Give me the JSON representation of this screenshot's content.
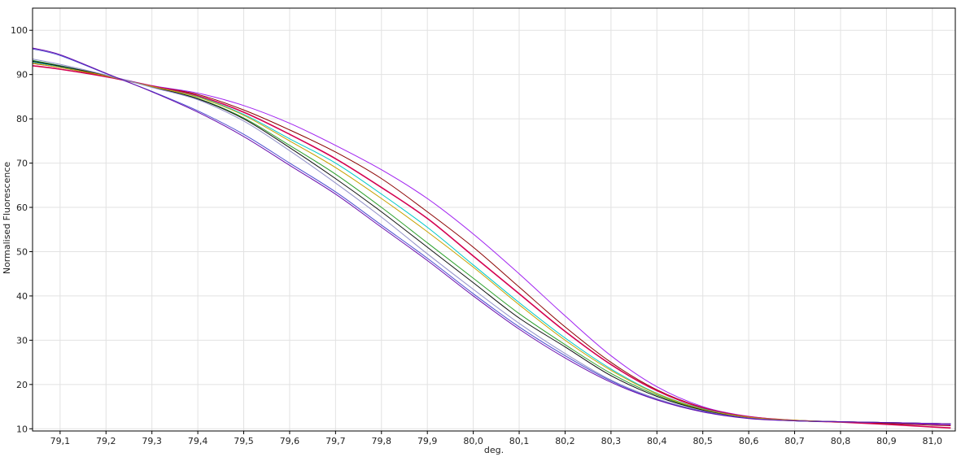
{
  "chart_data": {
    "type": "line",
    "title": "",
    "xlabel": "deg.",
    "ylabel": "Normalised Fluorescence",
    "xlim": [
      79.04,
      81.05
    ],
    "ylim": [
      9.5,
      105
    ],
    "x_ticks": [
      "79,1",
      "79,2",
      "79,3",
      "79,4",
      "79,5",
      "79,6",
      "79,7",
      "79,8",
      "79,9",
      "80,0",
      "80,1",
      "80,2",
      "80,3",
      "80,4",
      "80,5",
      "80,6",
      "80,7",
      "80,8",
      "80,9",
      "81,0"
    ],
    "x_tick_values": [
      79.1,
      79.2,
      79.3,
      79.4,
      79.5,
      79.6,
      79.7,
      79.8,
      79.9,
      80.0,
      80.1,
      80.2,
      80.3,
      80.4,
      80.5,
      80.6,
      80.7,
      80.8,
      80.9,
      81.0
    ],
    "y_ticks": [
      "10",
      "20",
      "30",
      "40",
      "50",
      "60",
      "70",
      "80",
      "90",
      "100"
    ],
    "y_tick_values": [
      10,
      20,
      30,
      40,
      50,
      60,
      70,
      80,
      90,
      100
    ],
    "grid": true,
    "legend": "none",
    "x": [
      79.04,
      79.1,
      79.2,
      79.3,
      79.4,
      79.5,
      79.6,
      79.7,
      79.8,
      79.9,
      80.0,
      80.1,
      80.2,
      80.3,
      80.4,
      80.5,
      80.6,
      80.7,
      80.8,
      80.9,
      81.0,
      81.04
    ],
    "series": [
      {
        "color": "#a020f0",
        "values": [
          93.0,
          92.0,
          89.8,
          87.5,
          85.8,
          83.0,
          79.0,
          74.0,
          68.5,
          62.0,
          54.0,
          45.0,
          35.5,
          26.5,
          19.5,
          15.0,
          12.8,
          11.9,
          11.6,
          11.3,
          11.0,
          10.9
        ]
      },
      {
        "color": "#8b0000",
        "values": [
          92.5,
          91.6,
          89.6,
          87.4,
          85.5,
          82.0,
          77.5,
          72.5,
          66.5,
          59.0,
          51.0,
          42.0,
          33.0,
          25.0,
          18.8,
          14.8,
          12.7,
          11.9,
          11.6,
          11.2,
          10.8,
          10.7
        ]
      },
      {
        "color": "#d40050",
        "values": [
          92.0,
          91.2,
          89.5,
          87.4,
          85.2,
          81.5,
          76.5,
          71.0,
          64.5,
          57.5,
          49.0,
          40.5,
          32.0,
          24.5,
          18.6,
          14.7,
          12.7,
          11.9,
          11.5,
          11.0,
          10.4,
          10.2
        ]
      },
      {
        "color": "#00c8c8",
        "values": [
          92.8,
          91.8,
          89.7,
          87.3,
          85.0,
          81.0,
          75.5,
          70.0,
          63.0,
          55.5,
          47.0,
          38.5,
          30.5,
          23.5,
          18.0,
          14.5,
          12.6,
          11.9,
          11.6,
          11.4,
          11.2,
          11.1
        ]
      },
      {
        "color": "#2ca02c",
        "values": [
          93.2,
          92.0,
          89.8,
          87.2,
          84.6,
          80.2,
          74.0,
          67.5,
          60.0,
          52.0,
          44.0,
          36.0,
          29.0,
          22.5,
          17.6,
          14.3,
          12.5,
          11.8,
          11.6,
          11.4,
          11.2,
          11.1
        ]
      },
      {
        "color": "#101010",
        "values": [
          93.0,
          91.9,
          89.8,
          87.2,
          84.5,
          80.0,
          73.5,
          66.5,
          59.0,
          51.0,
          43.0,
          35.0,
          28.5,
          22.0,
          17.3,
          14.2,
          12.5,
          11.8,
          11.6,
          11.4,
          11.2,
          11.1
        ]
      },
      {
        "color": "#c8a000",
        "values": [
          92.6,
          91.6,
          89.7,
          87.3,
          84.9,
          80.8,
          75.0,
          69.0,
          62.0,
          54.5,
          46.5,
          38.0,
          30.0,
          23.2,
          17.9,
          14.4,
          12.6,
          11.9,
          11.6,
          11.4,
          11.2,
          11.1
        ]
      },
      {
        "color": "#9090c8",
        "values": [
          93.5,
          92.3,
          89.9,
          87.1,
          84.3,
          79.5,
          72.8,
          65.5,
          57.8,
          49.5,
          41.5,
          33.8,
          27.0,
          21.0,
          16.8,
          14.0,
          12.4,
          11.8,
          11.6,
          11.4,
          11.2,
          11.1
        ]
      },
      {
        "color": "#4a4ad0",
        "values": [
          95.8,
          94.3,
          90.2,
          86.2,
          81.8,
          76.5,
          70.0,
          63.5,
          56.0,
          48.5,
          40.5,
          33.0,
          26.5,
          20.8,
          16.6,
          13.9,
          12.4,
          11.8,
          11.6,
          11.4,
          11.2,
          11.1
        ]
      },
      {
        "color": "#6a0dad",
        "values": [
          96.0,
          94.5,
          90.3,
          86.1,
          81.5,
          76.0,
          69.5,
          63.0,
          55.5,
          48.0,
          40.0,
          32.5,
          26.0,
          20.5,
          16.5,
          13.8,
          12.3,
          11.8,
          11.6,
          11.4,
          11.2,
          11.1
        ]
      }
    ]
  }
}
